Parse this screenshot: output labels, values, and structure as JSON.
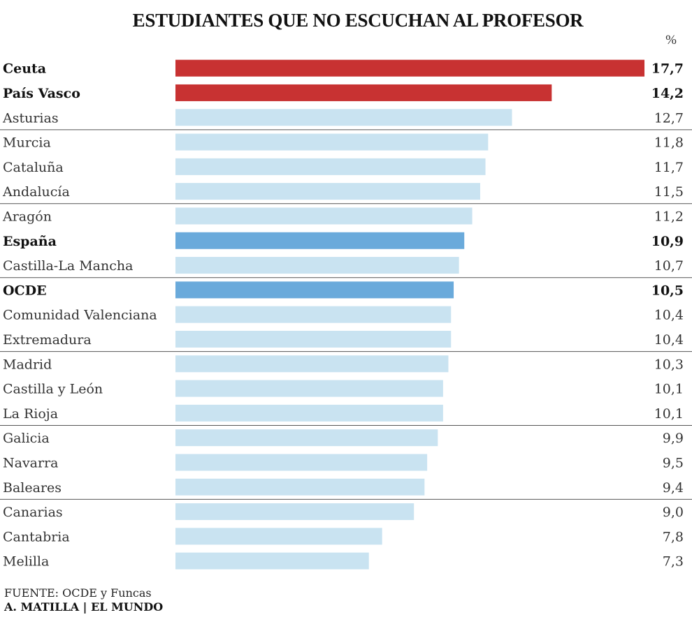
{
  "chart_data": {
    "type": "bar",
    "orientation": "horizontal",
    "title": "ESTUDIANTES QUE NO ESCUCHAN AL PROFESOR",
    "unit": "%",
    "categories": [
      "Ceuta",
      "País Vasco",
      "Asturias",
      "Murcia",
      "Cataluña",
      "Andalucía",
      "Aragón",
      "España",
      "Castilla-La Mancha",
      "OCDE",
      "Comunidad Valenciana",
      "Extremadura",
      "Madrid",
      "Castilla y León",
      "La Rioja",
      "Galicia",
      "Navarra",
      "Baleares",
      "Canarias",
      "Cantabria",
      "Melilla"
    ],
    "values": [
      17.7,
      14.2,
      12.7,
      11.8,
      11.7,
      11.5,
      11.2,
      10.9,
      10.7,
      10.5,
      10.4,
      10.4,
      10.3,
      10.1,
      10.1,
      9.9,
      9.5,
      9.4,
      9.0,
      7.8,
      7.3
    ],
    "value_labels": [
      "17,7",
      "14,2",
      "12,7",
      "11,8",
      "11,7",
      "11,5",
      "11,2",
      "10,9",
      "10,7",
      "10,5",
      "10,4",
      "10,4",
      "10,3",
      "10,1",
      "10,1",
      "9,9",
      "9,5",
      "9,4",
      "9,0",
      "7,8",
      "7,3"
    ],
    "highlight": [
      "top",
      "top",
      "",
      "",
      "",
      "",
      "",
      "reference",
      "",
      "reference",
      "",
      "",
      "",
      "",
      "",
      "",
      "",
      "",
      "",
      "",
      ""
    ],
    "xlim": [
      0,
      17.7
    ],
    "colors": {
      "top": "#c83232",
      "reference": "#6aaadb",
      "default": "#c9e3f1"
    }
  },
  "footer": {
    "source": "FUENTE: OCDE y Funcas",
    "credit": "A. MATILLA | EL MUNDO"
  }
}
